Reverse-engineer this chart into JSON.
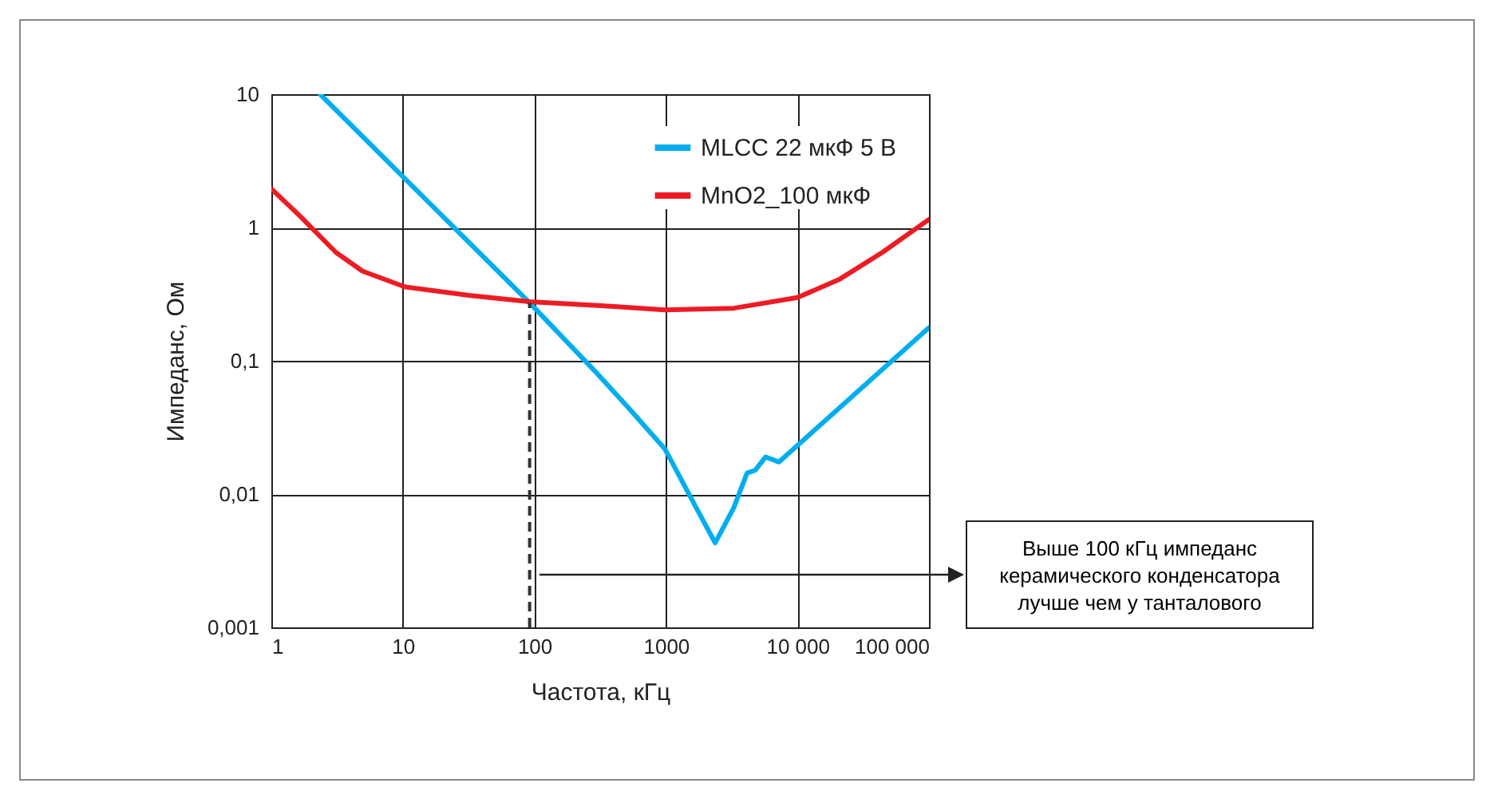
{
  "chart_data": {
    "type": "line",
    "xlabel": "Частота, кГц",
    "ylabel": "Импеданс, Ом",
    "log": "xy",
    "grid": true,
    "legend": "top right",
    "line_style": "solid",
    "marker": "none",
    "xlim": [
      1,
      100000
    ],
    "ylim": [
      0.001,
      10
    ],
    "xticks": [
      1,
      10,
      100,
      1000,
      {
        "value": 10000,
        "label": "10 000"
      },
      {
        "value": 100000,
        "label": "100 000"
      }
    ],
    "yticks": [
      {
        "value": 0.001,
        "label": "0,001"
      },
      {
        "value": 0.01,
        "label": "0,01"
      },
      {
        "value": 0.1,
        "label": "0,1"
      },
      1,
      10
    ],
    "series": [
      {
        "name": "MLCC 22 мкФ 5 В",
        "color": "#00aeef",
        "x": [
          2.35,
          92,
          294,
          513,
          980,
          1700,
          2370,
          3280,
          4140,
          4780,
          5730,
          7240,
          100000
        ],
        "values": [
          10,
          0.272,
          0.082,
          0.045,
          0.0219,
          0.0079,
          0.0043,
          0.0079,
          0.0144,
          0.0151,
          0.019,
          0.0174,
          0.177
        ]
      },
      {
        "name": "MnO2_100 мкФ",
        "color": "#ed1c24",
        "x": [
          1,
          1.62,
          3.1,
          4.94,
          10.4,
          31.7,
          92,
          322,
          980,
          3280,
          10000,
          21000,
          44200,
          100000
        ],
        "values": [
          1.95,
          1.24,
          0.65,
          0.47,
          0.358,
          0.31,
          0.277,
          0.259,
          0.241,
          0.248,
          0.298,
          0.41,
          0.65,
          1.15
        ]
      }
    ],
    "ref_lines": [
      {
        "axis": "x",
        "value": 92,
        "line_style": "dashed",
        "color": "#333333"
      }
    ],
    "annotations": [
      "Выше 100 кГц импеданс керамического конденсатора лучше чем у танталового"
    ]
  }
}
